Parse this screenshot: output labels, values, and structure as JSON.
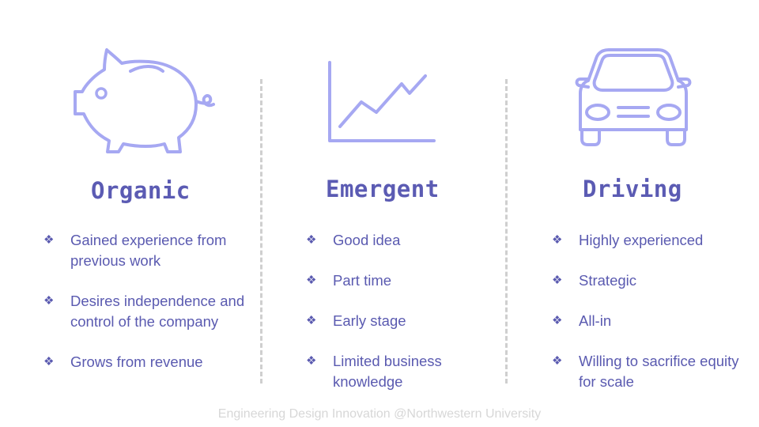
{
  "columns": [
    {
      "icon": "piggy-bank-icon",
      "title": "Organic",
      "bullets": [
        "Gained experience from previous work",
        "Desires independence and control of the company",
        "Grows from revenue"
      ]
    },
    {
      "icon": "line-chart-icon",
      "title": "Emergent",
      "bullets": [
        "Good idea",
        "Part time",
        "Early stage",
        "Limited business knowledge"
      ]
    },
    {
      "icon": "car-icon",
      "title": "Driving",
      "bullets": [
        "Highly experienced",
        "Strategic",
        "All-in",
        "Willing to sacrifice equity for scale"
      ]
    }
  ],
  "bullet_glyph": "❖",
  "footer": "Engineering Design Innovation @Northwestern University",
  "colors": {
    "accent": "#5b5bb3",
    "icon": "#a6a8f2",
    "divider": "#cfcfcf",
    "footer": "#d7d7d7"
  }
}
